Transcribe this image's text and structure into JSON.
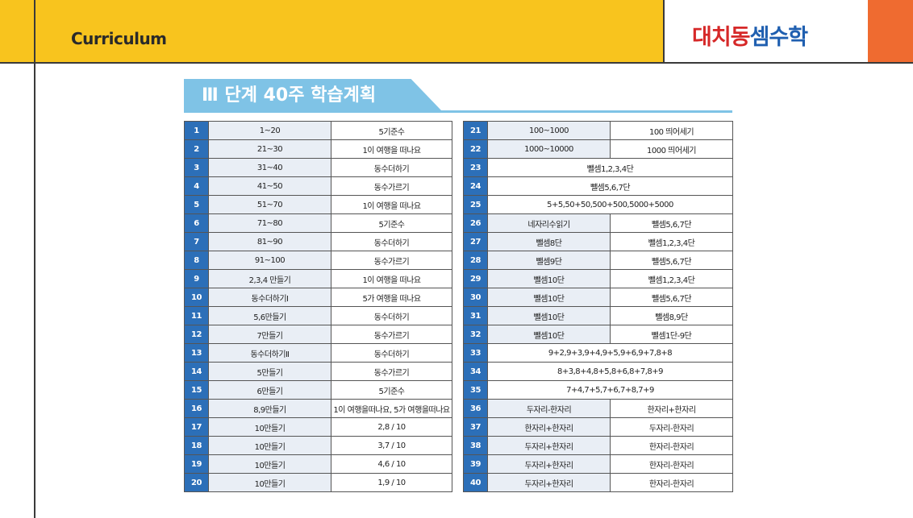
{
  "header": {
    "section_label": "Curriculum",
    "logo_red": "대치동",
    "logo_blue": "셈수학"
  },
  "title": "Ⅲ 단계  40주  학습계획",
  "colors": {
    "header_yellow": "#f8c41e",
    "accent_orange": "#ef6b30",
    "title_blue": "#7fc3e6",
    "week_blue": "#2c6fb8"
  },
  "left_rows": [
    {
      "week": "1",
      "a": "1~20",
      "b": "5기준수"
    },
    {
      "week": "2",
      "a": "21~30",
      "b": "1이 여행을 떠나요"
    },
    {
      "week": "3",
      "a": "31~40",
      "b": "동수더하기"
    },
    {
      "week": "4",
      "a": "41~50",
      "b": "동수가르기"
    },
    {
      "week": "5",
      "a": "51~70",
      "b": "1이 여행을 떠나요"
    },
    {
      "week": "6",
      "a": "71~80",
      "b": "5기준수"
    },
    {
      "week": "7",
      "a": "81~90",
      "b": "동수더하기"
    },
    {
      "week": "8",
      "a": "91~100",
      "b": "동수가르기"
    },
    {
      "week": "9",
      "a": "2,3,4  만들기",
      "b": "1이 여행을 떠나요"
    },
    {
      "week": "10",
      "a": "동수더하기Ⅰ",
      "b": "5가 여행을 떠나요"
    },
    {
      "week": "11",
      "a": "5,6만들기",
      "b": "동수더하기"
    },
    {
      "week": "12",
      "a": "7만들기",
      "b": "동수가르기"
    },
    {
      "week": "13",
      "a": "동수더하기Ⅱ",
      "b": "동수더하기"
    },
    {
      "week": "14",
      "a": "5만들기",
      "b": "동수가르기"
    },
    {
      "week": "15",
      "a": "6만들기",
      "b": "5기준수"
    },
    {
      "week": "16",
      "a": "8,9만들기",
      "b": "1이 여행을떠나요, 5가 여행을떠나요"
    },
    {
      "week": "17",
      "a": "10만들기",
      "b": "2,8  /  10"
    },
    {
      "week": "18",
      "a": "10만들기",
      "b": "3,7  /  10"
    },
    {
      "week": "19",
      "a": "10만들기",
      "b": "4,6  /  10"
    },
    {
      "week": "20",
      "a": "10만들기",
      "b": "1,9  /  10"
    }
  ],
  "right_rows": [
    {
      "week": "21",
      "a": "100~1000",
      "b": "100 띄어세기"
    },
    {
      "week": "22",
      "a": "1000~10000",
      "b": "1000 띄어세기"
    },
    {
      "week": "23",
      "merged": "뺄셈1,2,3,4단"
    },
    {
      "week": "24",
      "merged": "뺄셈5,6,7단"
    },
    {
      "week": "25",
      "merged": "5+5,50+50,500+500,5000+5000"
    },
    {
      "week": "26",
      "a": "네자리수읽기",
      "b": "뺄셈5,6,7단"
    },
    {
      "week": "27",
      "a": "뺄셈8단",
      "b": "뺄셈1,2,3,4단"
    },
    {
      "week": "28",
      "a": "뺄셈9단",
      "b": "뺄셈5,6,7단"
    },
    {
      "week": "29",
      "a": "뺄셈10단",
      "b": "뺄셈1,2,3,4단"
    },
    {
      "week": "30",
      "a": "뺄셈10단",
      "b": "뺄셈5,6,7단"
    },
    {
      "week": "31",
      "a": "뺄셈10단",
      "b": "뺄셈8,9단"
    },
    {
      "week": "32",
      "a": "뺄셈10단",
      "b": "뺄셈1단-9단"
    },
    {
      "week": "33",
      "merged": "9+2,9+3,9+4,9+5,9+6,9+7,8+8"
    },
    {
      "week": "34",
      "merged": "8+3,8+4,8+5,8+6,8+7,8+9"
    },
    {
      "week": "35",
      "merged": "7+4,7+5,7+6,7+8,7+9"
    },
    {
      "week": "36",
      "a": "두자리-한자리",
      "b": "한자리+한자리"
    },
    {
      "week": "37",
      "a": "한자리+한자리",
      "b": "두자리-한자리"
    },
    {
      "week": "38",
      "a": "두자리+한자리",
      "b": "한자리-한자리"
    },
    {
      "week": "39",
      "a": "두자리+한자리",
      "b": "한자리-한자리"
    },
    {
      "week": "40",
      "a": "두자리+한자리",
      "b": "한자리-한자리"
    }
  ]
}
